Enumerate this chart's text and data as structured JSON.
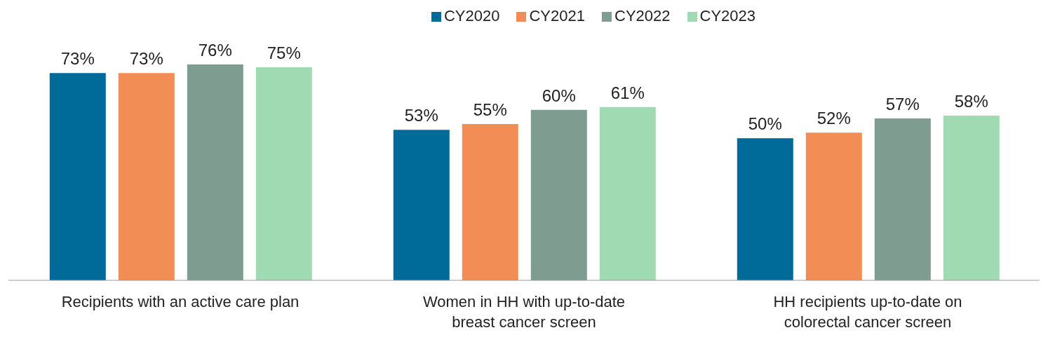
{
  "chart_data": {
    "type": "bar",
    "categories": [
      "Recipients with an active care plan",
      "Women in HH with up-to-date breast cancer screen",
      "HH recipients up-to-date on colorectal cancer screen"
    ],
    "series": [
      {
        "name": "CY2020",
        "color": "#006a99",
        "values": [
          73,
          53,
          50
        ],
        "value_labels": [
          "73%",
          "53%",
          "50%"
        ]
      },
      {
        "name": "CY2021",
        "color": "#f28e55",
        "values": [
          73,
          55,
          52
        ],
        "value_labels": [
          "73%",
          "55%",
          "52%"
        ]
      },
      {
        "name": "CY2022",
        "color": "#7f9c90",
        "values": [
          76,
          60,
          57
        ],
        "value_labels": [
          "76%",
          "60%",
          "57%"
        ]
      },
      {
        "name": "CY2023",
        "color": "#a0dab3",
        "values": [
          75,
          61,
          58
        ],
        "value_labels": [
          "75%",
          "61%",
          "58%"
        ]
      }
    ],
    "legend": "top",
    "grid": false
  }
}
